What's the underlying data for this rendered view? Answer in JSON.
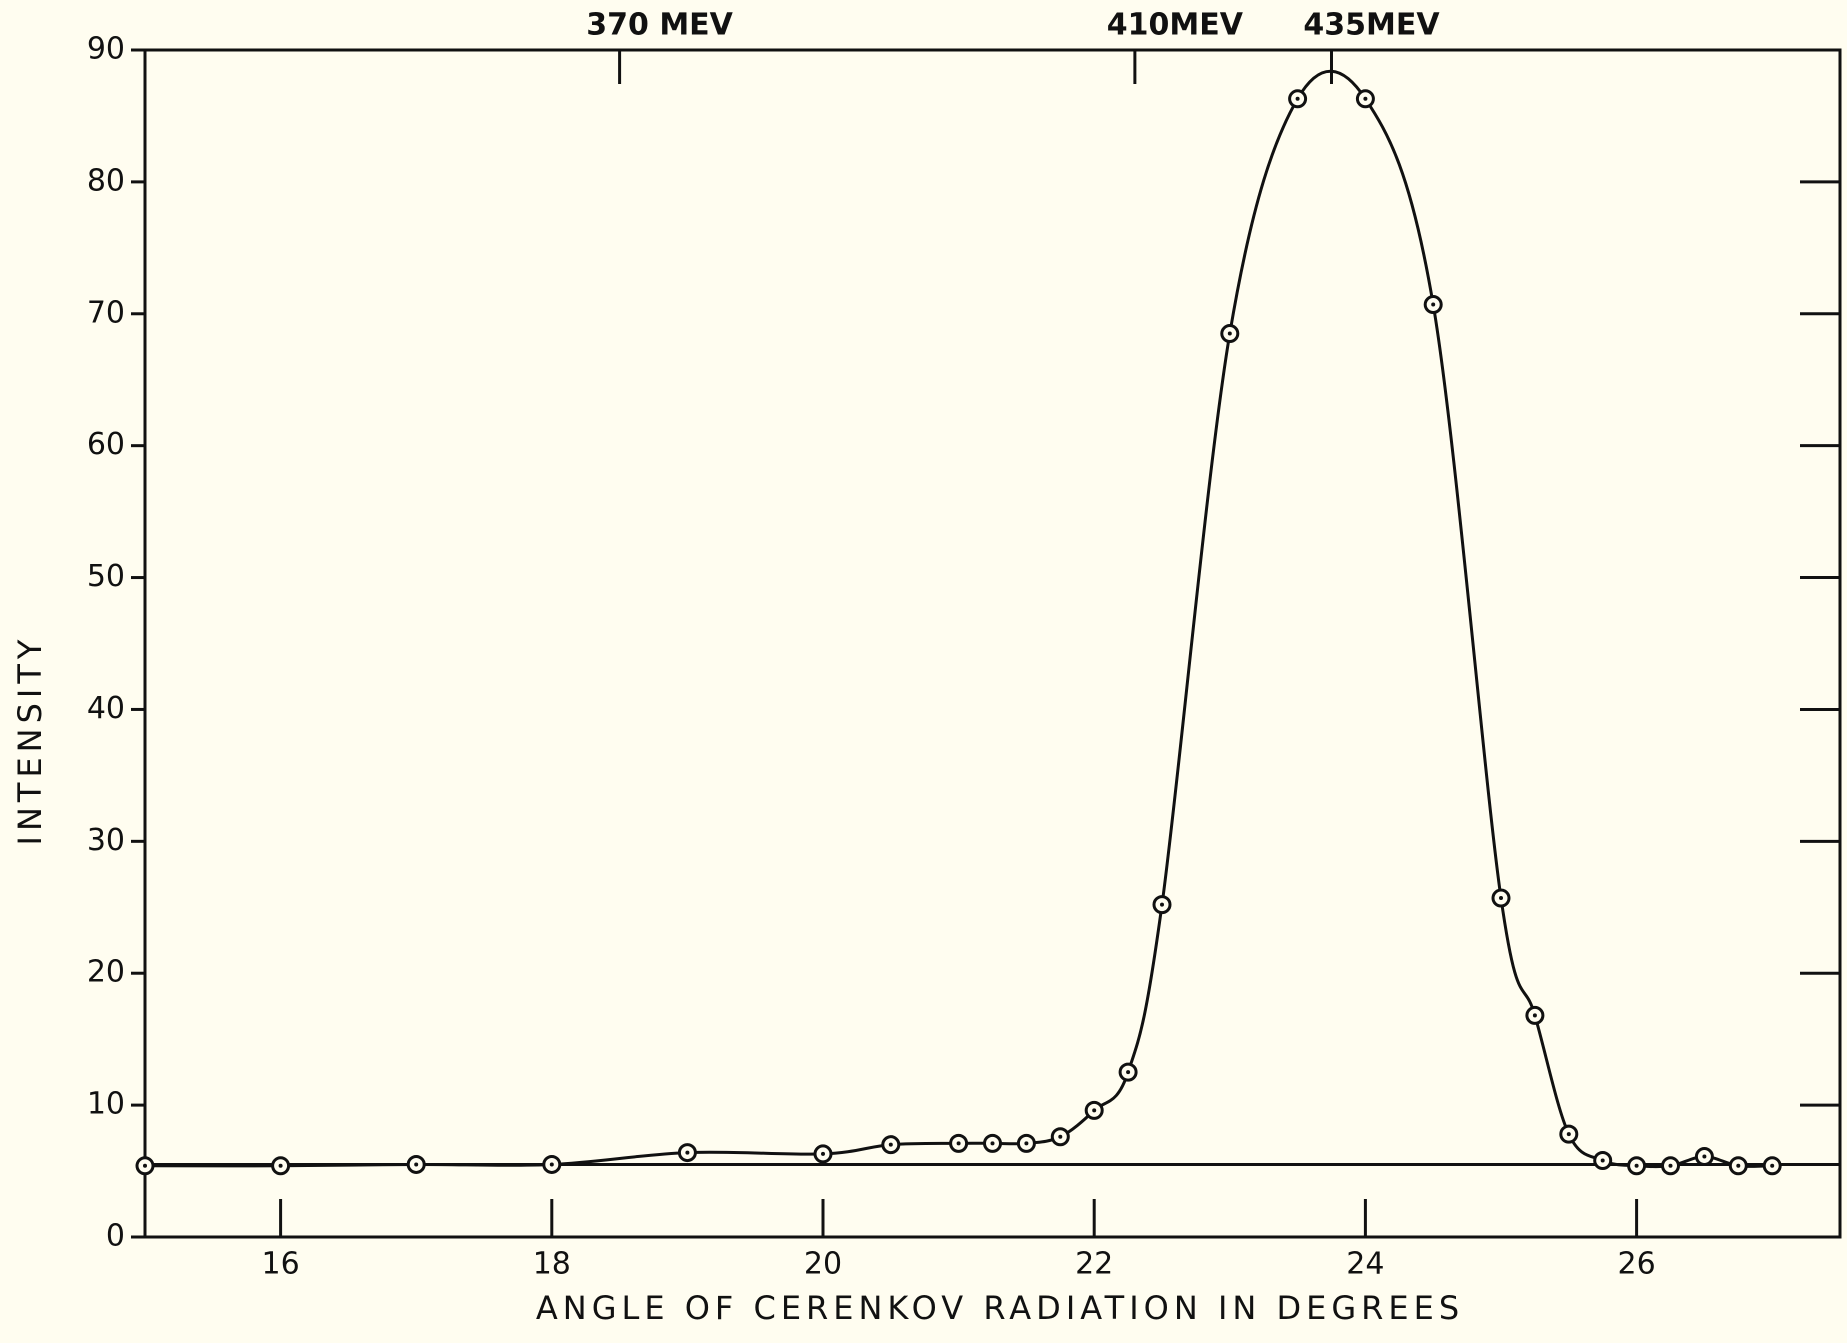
{
  "chart_data": {
    "type": "scatter",
    "x_label": "ANGLE OF CERENKOV RADIATION IN DEGREES",
    "y_label": "INTENSITY",
    "xlim": [
      15,
      27.5
    ],
    "ylim": [
      0,
      90
    ],
    "xticks": [
      16,
      18,
      20,
      22,
      24,
      26
    ],
    "yticks": [
      0,
      10,
      20,
      30,
      40,
      50,
      60,
      70,
      80,
      90
    ],
    "baseline": 5.5,
    "color": "#111111",
    "annotations": [
      {
        "text": "370 MEV",
        "x": 18.5
      },
      {
        "text": "410MEV",
        "x": 22.3
      },
      {
        "text": "435MEV",
        "x": 23.75
      }
    ],
    "x": [
      15,
      16,
      17,
      18,
      19,
      20,
      20.5,
      21,
      21.25,
      21.5,
      21.75,
      22,
      22.25,
      22.5,
      23,
      23.5,
      24,
      24.5,
      25,
      25.25,
      25.5,
      25.75,
      26,
      26.25,
      26.5,
      26.75,
      27
    ],
    "values": [
      5.4,
      5.4,
      5.5,
      5.5,
      6.4,
      6.3,
      7.0,
      7.1,
      7.1,
      7.1,
      7.6,
      9.6,
      12.5,
      25.2,
      68.5,
      86.3,
      86.3,
      70.7,
      25.7,
      16.8,
      7.8,
      5.8,
      5.4,
      5.4,
      6.1,
      5.4,
      5.4
    ]
  }
}
